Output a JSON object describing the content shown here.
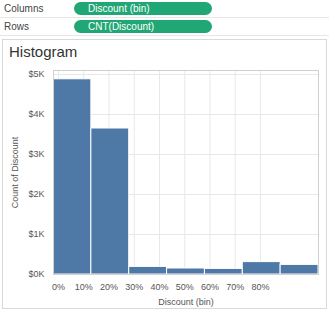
{
  "shelves": [
    {
      "label": "Columns",
      "pill": "Discount (bin)"
    },
    {
      "label": "Rows",
      "pill": "CNT(Discount)"
    }
  ],
  "chart_data": {
    "type": "histogram",
    "title": "Histogram",
    "x_label": "Discount (bin)",
    "y_label": "Count of Discount",
    "bins": [
      -2,
      13,
      28,
      43,
      58,
      73,
      88,
      103
    ],
    "values": [
      4880,
      3650,
      190,
      150,
      140,
      310,
      240
    ],
    "color": "#4e79a7",
    "xlim": [
      -2,
      103
    ],
    "xticks": [
      {
        "value": 0,
        "label": "0%"
      },
      {
        "value": 10,
        "label": "10%"
      },
      {
        "value": 20,
        "label": "20%"
      },
      {
        "value": 30,
        "label": "30%"
      },
      {
        "value": 40,
        "label": "40%"
      },
      {
        "value": 50,
        "label": "50%"
      },
      {
        "value": 60,
        "label": "60%"
      },
      {
        "value": 70,
        "label": "70%"
      },
      {
        "value": 80,
        "label": "80%"
      }
    ],
    "ylim": [
      0,
      5100
    ],
    "yticks": [
      {
        "value": 0,
        "label": "$0K"
      },
      {
        "value": 1000,
        "label": "$1K"
      },
      {
        "value": 2000,
        "label": "$2K"
      },
      {
        "value": 3000,
        "label": "$3K"
      },
      {
        "value": 4000,
        "label": "$4K"
      },
      {
        "value": 5000,
        "label": "$5K"
      }
    ],
    "grid": true
  }
}
